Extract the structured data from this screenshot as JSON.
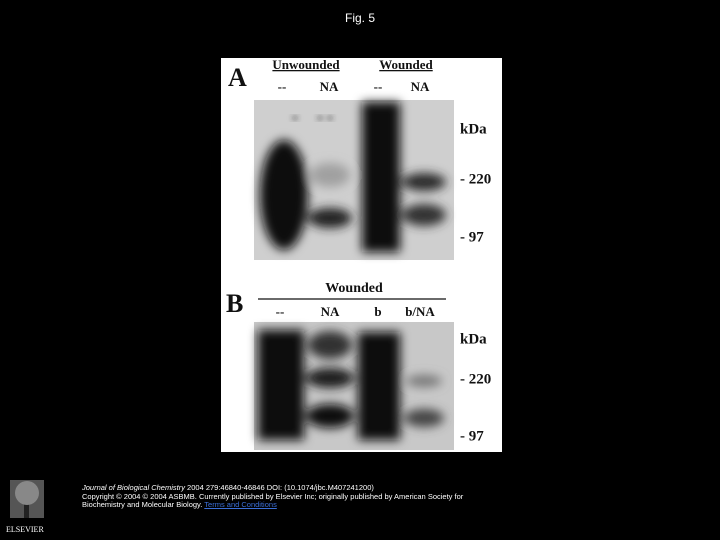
{
  "header": {
    "title": "Fig. 5"
  },
  "figure": {
    "panels": [
      {
        "label": "A",
        "groups": [
          "Unwounded",
          "Wounded"
        ],
        "lanes": [
          "--",
          "NA",
          "--",
          "NA"
        ],
        "unit": "kDa",
        "markers": [
          "- 220",
          "- 97"
        ]
      },
      {
        "label": "B",
        "groups": [
          "Wounded"
        ],
        "lanes": [
          "--",
          "NA",
          "b",
          "b/NA"
        ],
        "unit": "kDa",
        "markers": [
          "- 220",
          "- 97"
        ]
      }
    ]
  },
  "footer": {
    "publisher": "ELSEVIER",
    "journal": "Journal of Biological Chemistry",
    "citation": " 2004 279:46840-46846 DOI: (10.1074/jbc.M407241200)",
    "copyright": "Copyright © 2004 © 2004 ASBMB. Currently published by Elsevier Inc; originally published by American Society for Biochemistry and Molecular Biology. ",
    "link": "Terms and Conditions"
  }
}
